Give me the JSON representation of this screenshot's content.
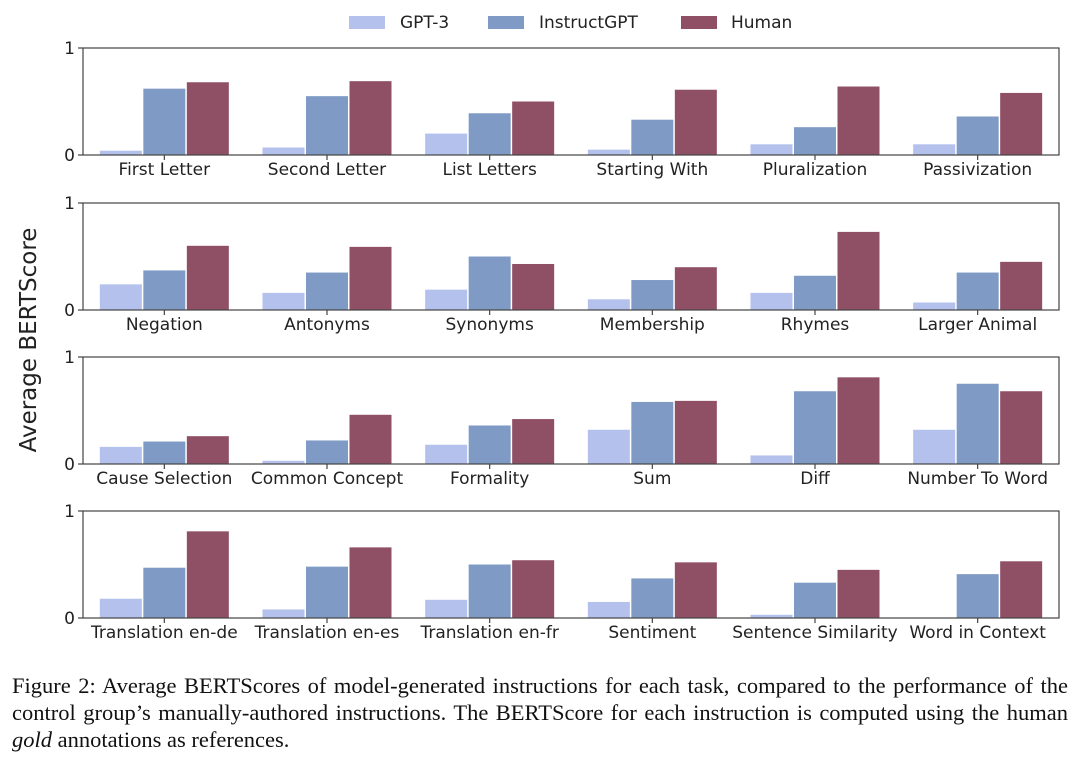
{
  "chart_data": {
    "type": "bar",
    "ylabel": "Average BERTScore",
    "ylim": [
      0,
      1
    ],
    "yticks": [
      "0",
      "1"
    ],
    "legend_position": "top-center",
    "series_names": [
      "GPT-3",
      "InstructGPT",
      "Human"
    ],
    "series_colors": [
      "#b3c1ec",
      "#7f9bc5",
      "#8f5065"
    ],
    "panels": [
      {
        "categories": [
          "First Letter",
          "Second Letter",
          "List Letters",
          "Starting With",
          "Pluralization",
          "Passivization"
        ],
        "series": [
          {
            "name": "GPT-3",
            "values": [
              0.04,
              0.07,
              0.2,
              0.05,
              0.1,
              0.1
            ]
          },
          {
            "name": "InstructGPT",
            "values": [
              0.62,
              0.55,
              0.39,
              0.33,
              0.26,
              0.36
            ]
          },
          {
            "name": "Human",
            "values": [
              0.68,
              0.69,
              0.5,
              0.61,
              0.64,
              0.58
            ]
          }
        ]
      },
      {
        "categories": [
          "Negation",
          "Antonyms",
          "Synonyms",
          "Membership",
          "Rhymes",
          "Larger Animal"
        ],
        "series": [
          {
            "name": "GPT-3",
            "values": [
              0.24,
              0.16,
              0.19,
              0.1,
              0.16,
              0.07
            ]
          },
          {
            "name": "InstructGPT",
            "values": [
              0.37,
              0.35,
              0.5,
              0.28,
              0.32,
              0.35
            ]
          },
          {
            "name": "Human",
            "values": [
              0.6,
              0.59,
              0.43,
              0.4,
              0.73,
              0.45
            ]
          }
        ]
      },
      {
        "categories": [
          "Cause Selection",
          "Common Concept",
          "Formality",
          "Sum",
          "Diff",
          "Number To Word"
        ],
        "series": [
          {
            "name": "GPT-3",
            "values": [
              0.16,
              0.03,
              0.18,
              0.32,
              0.08,
              0.32
            ]
          },
          {
            "name": "InstructGPT",
            "values": [
              0.21,
              0.22,
              0.36,
              0.58,
              0.68,
              0.75
            ]
          },
          {
            "name": "Human",
            "values": [
              0.26,
              0.46,
              0.42,
              0.59,
              0.81,
              0.68
            ]
          }
        ]
      },
      {
        "categories": [
          "Translation en-de",
          "Translation en-es",
          "Translation en-fr",
          "Sentiment",
          "Sentence Similarity",
          "Word in Context"
        ],
        "series": [
          {
            "name": "GPT-3",
            "values": [
              0.18,
              0.08,
              0.17,
              0.15,
              0.03,
              0.0
            ]
          },
          {
            "name": "InstructGPT",
            "values": [
              0.47,
              0.48,
              0.5,
              0.37,
              0.33,
              0.41
            ]
          },
          {
            "name": "Human",
            "values": [
              0.81,
              0.66,
              0.54,
              0.52,
              0.45,
              0.53
            ]
          }
        ]
      }
    ]
  },
  "caption": {
    "label": "Figure 2:",
    "text_before": "Average BERTScores of model-generated instructions for each task, compared to the performance of the control group’s manually-authored instructions. The BERTScore for each instruction is computed using the human ",
    "emphasis": "gold",
    "text_after": " annotations as references."
  }
}
